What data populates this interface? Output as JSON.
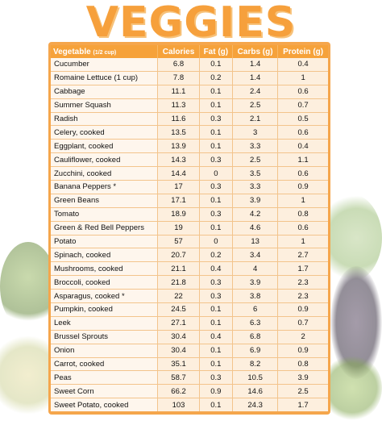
{
  "title": "VEGGIES",
  "table": {
    "columns": [
      {
        "label": "Vegetable",
        "sub": "(1/2 cup)"
      },
      {
        "label": "Calories"
      },
      {
        "label": "Fat (g)"
      },
      {
        "label": "Carbs (g)"
      },
      {
        "label": "Protein (g)"
      }
    ],
    "rows": [
      [
        "Cucumber",
        "6.8",
        "0.1",
        "1.4",
        "0.4"
      ],
      [
        "Romaine Lettuce (1 cup)",
        "7.8",
        "0.2",
        "1.4",
        "1"
      ],
      [
        "Cabbage",
        "11.1",
        "0.1",
        "2.4",
        "0.6"
      ],
      [
        "Summer Squash",
        "11.3",
        "0.1",
        "2.5",
        "0.7"
      ],
      [
        "Radish",
        "11.6",
        "0.3",
        "2.1",
        "0.5"
      ],
      [
        "Celery, cooked",
        "13.5",
        "0.1",
        "3",
        "0.6"
      ],
      [
        "Eggplant, cooked",
        "13.9",
        "0.1",
        "3.3",
        "0.4"
      ],
      [
        "Cauliflower, cooked",
        "14.3",
        "0.3",
        "2.5",
        "1.1"
      ],
      [
        "Zucchini, cooked",
        "14.4",
        "0",
        "3.5",
        "0.6"
      ],
      [
        "Banana Peppers *",
        "17",
        "0.3",
        "3.3",
        "0.9"
      ],
      [
        "Green Beans",
        "17.1",
        "0.1",
        "3.9",
        "1"
      ],
      [
        "Tomato",
        "18.9",
        "0.3",
        "4.2",
        "0.8"
      ],
      [
        "Green & Red Bell Peppers",
        "19",
        "0.1",
        "4.6",
        "0.6"
      ],
      [
        "Potato",
        "57",
        "0",
        "13",
        "1"
      ],
      [
        "Spinach, cooked",
        "20.7",
        "0.2",
        "3.4",
        "2.7"
      ],
      [
        "Mushrooms, cooked",
        "21.1",
        "0.4",
        "4",
        "1.7"
      ],
      [
        "Broccoli, cooked",
        "21.8",
        "0.3",
        "3.9",
        "2.3"
      ],
      [
        "Asparagus, cooked *",
        "22",
        "0.3",
        "3.8",
        "2.3"
      ],
      [
        "Pumpkin, cooked",
        "24.5",
        "0.1",
        "6",
        "0.9"
      ],
      [
        "Leek",
        "27.1",
        "0.1",
        "6.3",
        "0.7"
      ],
      [
        "Brussel Sprouts",
        "30.4",
        "0.4",
        "6.8",
        "2"
      ],
      [
        "Onion",
        "30.4",
        "0.1",
        "6.9",
        "0.9"
      ],
      [
        "Carrot, cooked",
        "35.1",
        "0.1",
        "8.2",
        "0.8"
      ],
      [
        "Peas",
        "58.7",
        "0.3",
        "10.5",
        "3.9"
      ],
      [
        "Sweet Corn",
        "66.2",
        "0.9",
        "14.6",
        "2.5"
      ],
      [
        "Sweet Potato, cooked",
        "103",
        "0.1",
        "24.3",
        "1.7"
      ]
    ]
  },
  "colors": {
    "accent": "#f6a23a",
    "title": "#f6a03c"
  }
}
